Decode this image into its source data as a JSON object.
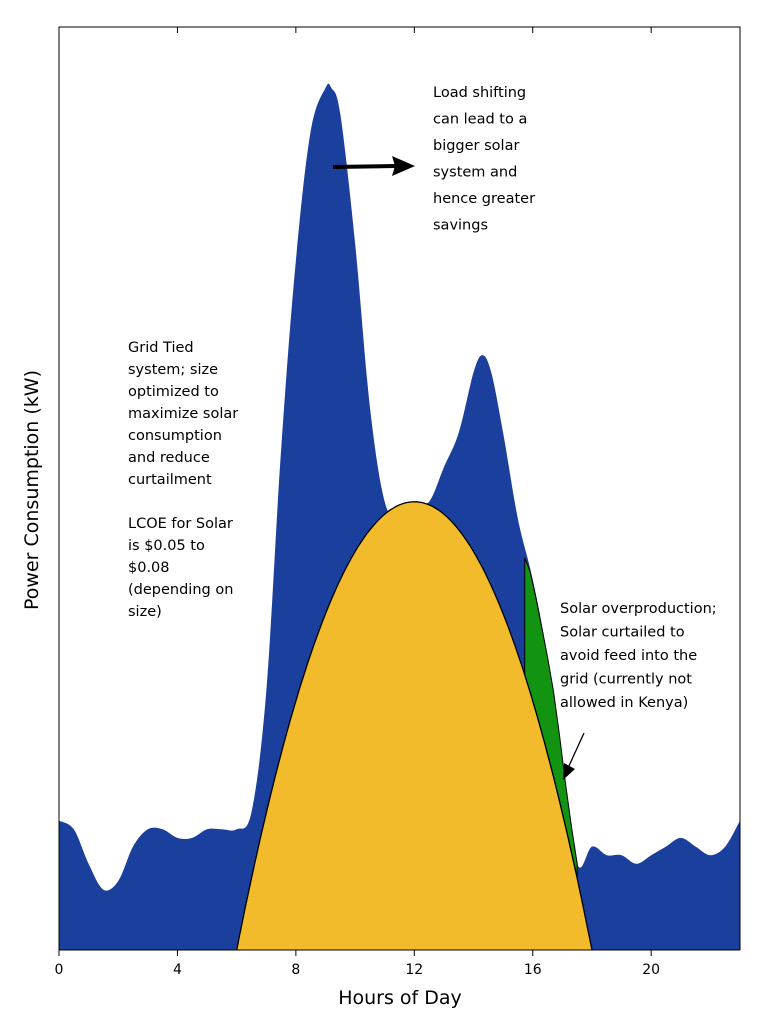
{
  "chart_data": {
    "type": "area",
    "xlabel": "Hours of Day",
    "ylabel": "Power Consumption (kW)",
    "xlim": [
      0,
      23
    ],
    "ylim": [
      0,
      100
    ],
    "x_ticks": [
      0,
      4,
      8,
      12,
      16,
      20
    ],
    "tick_labels": [
      "0",
      "4",
      "8",
      "12",
      "16",
      "20"
    ],
    "grid": false,
    "legend": "none",
    "colors": {
      "consumption": "#1b3f9c",
      "solar": "#f2bb2c",
      "curtailed": "#129412"
    },
    "series": [
      {
        "key": "consumption",
        "x": [
          0,
          0.5,
          1,
          1.5,
          2,
          2.5,
          3,
          3.5,
          4,
          4.5,
          5,
          5.5,
          6,
          6.5,
          7,
          7.5,
          8,
          8.5,
          9,
          9.2,
          9.5,
          10,
          10.5,
          11,
          11.5,
          12,
          12.5,
          13,
          13.5,
          14,
          14.3,
          14.6,
          15,
          15.5,
          16,
          16.5,
          17,
          17.5,
          18,
          18.5,
          19,
          19.5,
          20,
          20.5,
          21,
          21.5,
          22,
          22.5,
          23
        ],
        "values": [
          15,
          14,
          10,
          7,
          8,
          12,
          14,
          14,
          13,
          13,
          14,
          14,
          14,
          16,
          30,
          58,
          80,
          95,
          100,
          100,
          97,
          82,
          63,
          52,
          50,
          52,
          52,
          56,
          60,
          67,
          69,
          67,
          60,
          50,
          43,
          34,
          22,
          10,
          12,
          11,
          11,
          10,
          11,
          12,
          13,
          12,
          11,
          12,
          15
        ]
      },
      {
        "key": "solar",
        "x": [
          6,
          7,
          8,
          9,
          10,
          11,
          12,
          13,
          14,
          15,
          16,
          17,
          18
        ],
        "values": [
          0,
          19,
          33,
          42,
          48,
          51,
          52,
          51,
          48,
          42,
          33,
          19,
          0
        ]
      }
    ],
    "curtailment_x": [
      15.73,
      15.9,
      16.1,
      16.3,
      16.5,
      16.7,
      16.9,
      17.1,
      17.3,
      17.5
    ],
    "curtailment_consumption": [
      45.5,
      44,
      41,
      37.5,
      34,
      30,
      25,
      19.5,
      14.5,
      10
    ],
    "annotations": [
      {
        "key": "load_shifting",
        "lines": [
          "Load shifting",
          "can lead to a",
          "bigger solar",
          "system and",
          "hence greater",
          "savings"
        ]
      },
      {
        "key": "grid_tied",
        "lines": [
          "Grid Tied",
          "system; size",
          "optimized to",
          "maximize solar",
          "consumption",
          "and reduce",
          "curtailment",
          "",
          "LCOE for Solar",
          "is $0.05 to",
          "$0.08",
          "(depending on",
          "size)"
        ]
      },
      {
        "key": "overproduction",
        "lines": [
          "Solar overproduction;",
          "Solar curtailed to",
          "avoid feed into the",
          "grid (currently not",
          "allowed in Kenya)"
        ]
      }
    ]
  }
}
